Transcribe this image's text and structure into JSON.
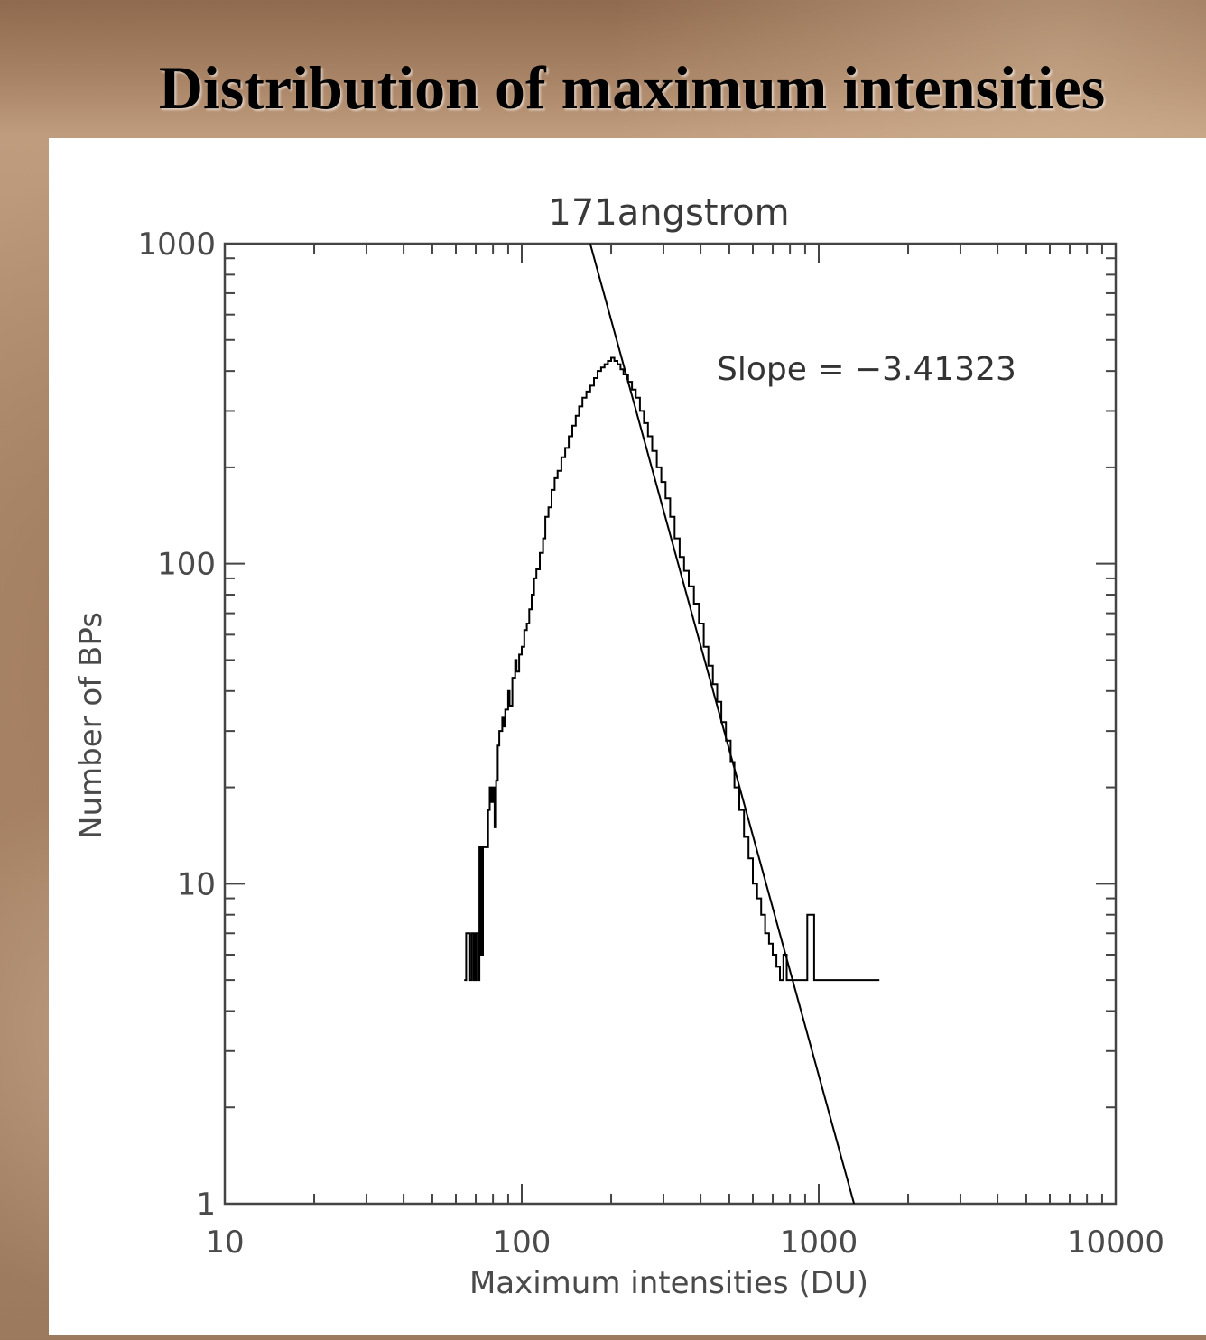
{
  "slide": {
    "title": "Distribution of maximum intensities"
  },
  "chart_data": {
    "type": "line",
    "title": "171angstrom",
    "xlabel": "Maximum intensities (DU)",
    "ylabel": "Number of BPs",
    "xscale": "log",
    "yscale": "log",
    "xlim": [
      10,
      10000
    ],
    "ylim": [
      1,
      1000
    ],
    "x_ticks": [
      "10",
      "100",
      "1000",
      "10000"
    ],
    "y_ticks": [
      "1",
      "10",
      "100",
      "1000"
    ],
    "grid": false,
    "annotation": "Slope = −3.41323",
    "series": [
      {
        "kind": "histogram-step",
        "color": "#000000",
        "points": [
          [
            64,
            5
          ],
          [
            65,
            7
          ],
          [
            67,
            5
          ],
          [
            68,
            7
          ],
          [
            69,
            5
          ],
          [
            70,
            7
          ],
          [
            71,
            5
          ],
          [
            72,
            13
          ],
          [
            73,
            6
          ],
          [
            74,
            13
          ],
          [
            75,
            13
          ],
          [
            76,
            13
          ],
          [
            77,
            17
          ],
          [
            78,
            20
          ],
          [
            79,
            18
          ],
          [
            80,
            20
          ],
          [
            81,
            15
          ],
          [
            82,
            21
          ],
          [
            83,
            27
          ],
          [
            84,
            30
          ],
          [
            86,
            33
          ],
          [
            87,
            31
          ],
          [
            88,
            35
          ],
          [
            90,
            40
          ],
          [
            91,
            36
          ],
          [
            93,
            44
          ],
          [
            95,
            50
          ],
          [
            96,
            46
          ],
          [
            98,
            52
          ],
          [
            100,
            55
          ],
          [
            102,
            62
          ],
          [
            104,
            65
          ],
          [
            106,
            72
          ],
          [
            108,
            80
          ],
          [
            110,
            90
          ],
          [
            112,
            96
          ],
          [
            115,
            108
          ],
          [
            118,
            120
          ],
          [
            120,
            140
          ],
          [
            123,
            150
          ],
          [
            126,
            170
          ],
          [
            129,
            185
          ],
          [
            132,
            195
          ],
          [
            136,
            215
          ],
          [
            140,
            230
          ],
          [
            144,
            250
          ],
          [
            148,
            270
          ],
          [
            152,
            290
          ],
          [
            156,
            310
          ],
          [
            160,
            330
          ],
          [
            165,
            345
          ],
          [
            170,
            360
          ],
          [
            175,
            380
          ],
          [
            180,
            400
          ],
          [
            185,
            410
          ],
          [
            190,
            420
          ],
          [
            195,
            430
          ],
          [
            200,
            440
          ],
          [
            205,
            430
          ],
          [
            210,
            420
          ],
          [
            215,
            405
          ],
          [
            220,
            390
          ],
          [
            228,
            370
          ],
          [
            235,
            350
          ],
          [
            242,
            330
          ],
          [
            250,
            300
          ],
          [
            258,
            275
          ],
          [
            266,
            250
          ],
          [
            275,
            225
          ],
          [
            285,
            200
          ],
          [
            295,
            180
          ],
          [
            305,
            160
          ],
          [
            316,
            140
          ],
          [
            327,
            120
          ],
          [
            340,
            105
          ],
          [
            352,
            95
          ],
          [
            365,
            85
          ],
          [
            380,
            75
          ],
          [
            395,
            65
          ],
          [
            410,
            55
          ],
          [
            425,
            48
          ],
          [
            440,
            42
          ],
          [
            455,
            37
          ],
          [
            470,
            32
          ],
          [
            487,
            28
          ],
          [
            505,
            24
          ],
          [
            520,
            20
          ],
          [
            540,
            17
          ],
          [
            560,
            14
          ],
          [
            580,
            12
          ],
          [
            600,
            10
          ],
          [
            620,
            9
          ],
          [
            640,
            8
          ],
          [
            660,
            7
          ],
          [
            680,
            6.5
          ],
          [
            700,
            6
          ],
          [
            720,
            5.5
          ],
          [
            740,
            5
          ],
          [
            760,
            6
          ],
          [
            780,
            5
          ],
          [
            800,
            5
          ],
          [
            850,
            5
          ],
          [
            900,
            5
          ],
          [
            910,
            5
          ],
          [
            915,
            8
          ],
          [
            960,
            8
          ],
          [
            965,
            5
          ],
          [
            1000,
            5
          ],
          [
            1100,
            5
          ],
          [
            1200,
            5
          ],
          [
            1350,
            5
          ],
          [
            1600,
            5
          ]
        ]
      },
      {
        "kind": "fit-line",
        "name": "Slope = −3.41323",
        "color": "#000000",
        "slope": -3.41323,
        "points": [
          [
            170,
            1000
          ],
          [
            1315,
            1
          ]
        ]
      }
    ]
  }
}
